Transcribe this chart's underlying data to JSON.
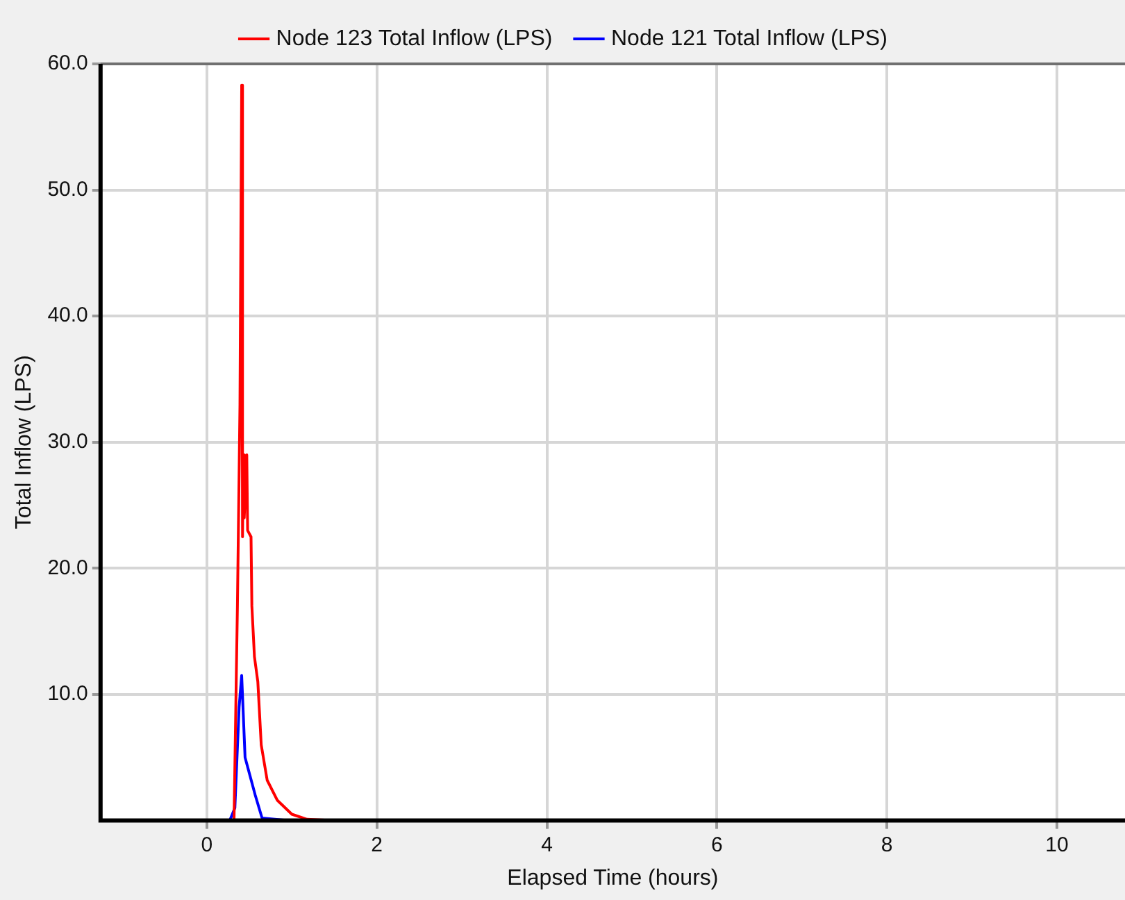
{
  "chart_data": {
    "type": "line",
    "xlabel": "Elapsed Time (hours)",
    "ylabel": "Total Inflow (LPS)",
    "xlim": [
      -1.25,
      10.8
    ],
    "xticks": [
      0,
      2,
      4,
      6,
      8,
      10
    ],
    "ylim": [
      0,
      60
    ],
    "yticks": [
      {
        "value": 10,
        "label": "10.0"
      },
      {
        "value": 20,
        "label": "20.0"
      },
      {
        "value": 30,
        "label": "30.0"
      },
      {
        "value": 40,
        "label": "40.0"
      },
      {
        "value": 50,
        "label": "50.0"
      },
      {
        "value": 60,
        "label": "60.0"
      }
    ],
    "grid": true,
    "legend": "top",
    "marker": "none",
    "line_style": "solid",
    "series": [
      {
        "name": "Node 123 Total Inflow (LPS)",
        "color": "#ff0000",
        "x": [
          0.3,
          0.32,
          0.36,
          0.39,
          0.41,
          0.42,
          0.43,
          0.44,
          0.47,
          0.48,
          0.52,
          0.53,
          0.56,
          0.6,
          0.64,
          0.71,
          0.83,
          1.0,
          1.18,
          1.47
        ],
        "values": [
          0,
          0,
          17,
          33,
          58.3,
          22.5,
          29,
          24,
          29,
          23,
          22.5,
          17,
          13,
          11,
          6,
          3.2,
          1.6,
          0.5,
          0.1,
          0
        ]
      },
      {
        "name": "Node 121 Total Inflow (LPS)",
        "color": "#0000ff",
        "x": [
          0.27,
          0.33,
          0.38,
          0.41,
          0.45,
          0.51,
          0.57,
          0.65,
          0.95
        ],
        "values": [
          0,
          1,
          9,
          11.5,
          5,
          3.5,
          2,
          0.2,
          0
        ]
      }
    ]
  }
}
